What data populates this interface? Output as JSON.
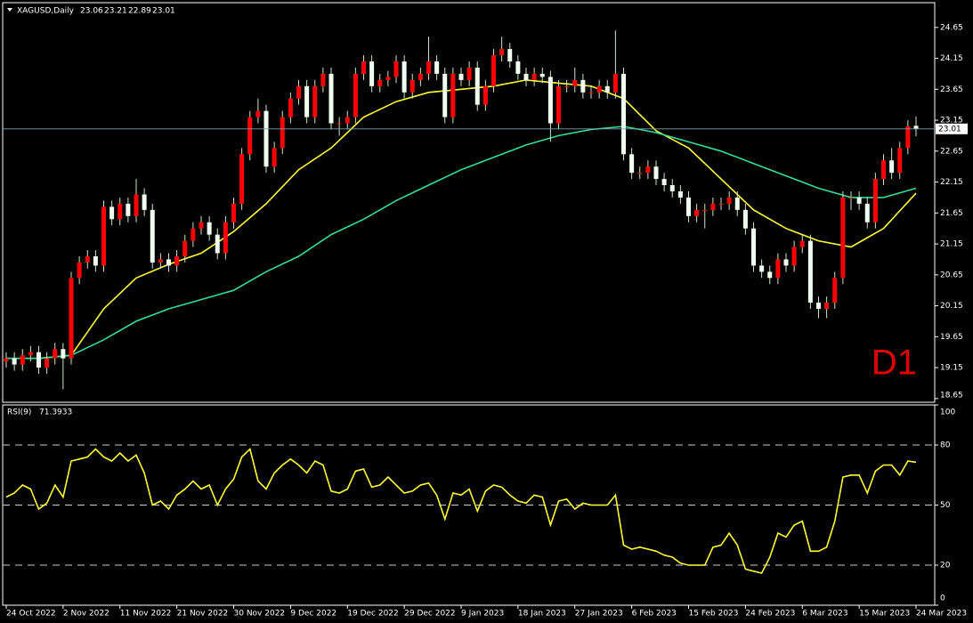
{
  "chart_data": [
    {
      "type": "candlestick",
      "title": "XAGUSD,Daily",
      "annotation": "D1",
      "categories": [
        "24 Oct 2022",
        null,
        null,
        null,
        null,
        null,
        null,
        "2 Nov 2022",
        null,
        null,
        null,
        null,
        null,
        null,
        "11 Nov 2022",
        null,
        null,
        null,
        null,
        null,
        null,
        "21 Nov 2022",
        null,
        null,
        null,
        null,
        null,
        null,
        "30 Nov 2022",
        null,
        null,
        null,
        null,
        null,
        null,
        "9 Dec 2022",
        null,
        null,
        null,
        null,
        null,
        null,
        "19 Dec 2022",
        null,
        null,
        null,
        null,
        null,
        null,
        "29 Dec 2022",
        null,
        null,
        null,
        null,
        null,
        null,
        "9 Jan 2023",
        null,
        null,
        null,
        null,
        null,
        null,
        "18 Jan 2023",
        null,
        null,
        null,
        null,
        null,
        null,
        "27 Jan 2023",
        null,
        null,
        null,
        null,
        null,
        null,
        "6 Feb 2023",
        null,
        null,
        null,
        null,
        null,
        null,
        "15 Feb 2023",
        null,
        null,
        null,
        null,
        null,
        null,
        "24 Feb 2023",
        null,
        null,
        null,
        null,
        null,
        null,
        "6 Mar 2023",
        null,
        null,
        null,
        null,
        null,
        null,
        "15 Mar 2023",
        null,
        null,
        null,
        null,
        null,
        null,
        "24 Mar 2023"
      ],
      "open": [
        19.25,
        19.3,
        19.2,
        19.35,
        19.4,
        19.15,
        19.3,
        19.45,
        19.3,
        20.6,
        20.85,
        20.95,
        20.8,
        21.75,
        21.55,
        21.8,
        21.6,
        21.95,
        21.7,
        20.85,
        20.9,
        20.8,
        20.95,
        21.2,
        21.4,
        21.5,
        21.3,
        21.0,
        21.5,
        21.8,
        22.6,
        23.2,
        23.3,
        22.4,
        22.7,
        23.2,
        23.5,
        23.7,
        23.2,
        23.7,
        23.9,
        23.1,
        23.1,
        23.2,
        23.9,
        24.1,
        23.7,
        23.8,
        23.85,
        24.1,
        23.6,
        23.8,
        23.9,
        24.1,
        23.9,
        23.2,
        23.9,
        23.8,
        24.0,
        23.4,
        23.7,
        24.2,
        24.3,
        24.1,
        23.9,
        23.8,
        23.9,
        23.85,
        23.1,
        23.7,
        23.7,
        23.8,
        23.6,
        23.6,
        23.7,
        23.6,
        23.9,
        22.6,
        22.3,
        22.3,
        22.4,
        22.2,
        22.1,
        22.0,
        21.9,
        21.6,
        21.7,
        21.7,
        21.8,
        21.8,
        21.9,
        21.7,
        21.4,
        20.8,
        20.7,
        20.6,
        20.9,
        20.8,
        21.1,
        21.2,
        20.2,
        20.1,
        20.2,
        20.6,
        21.9,
        21.9,
        21.8,
        21.5,
        22.2,
        22.5,
        22.3,
        22.7,
        23.06
      ],
      "high": [
        19.4,
        19.4,
        19.45,
        19.5,
        19.5,
        19.4,
        19.55,
        19.55,
        20.7,
        20.95,
        21.05,
        21.05,
        21.85,
        21.85,
        21.9,
        21.9,
        22.2,
        22.05,
        21.8,
        21.0,
        21.0,
        21.05,
        21.3,
        21.5,
        21.6,
        21.6,
        21.4,
        21.6,
        21.9,
        22.7,
        23.3,
        23.5,
        23.4,
        22.8,
        23.3,
        23.6,
        23.8,
        23.8,
        23.8,
        24.0,
        24.0,
        23.2,
        23.3,
        24.0,
        24.2,
        24.2,
        23.9,
        23.95,
        24.2,
        24.2,
        23.9,
        24.0,
        24.5,
        24.2,
        24.0,
        24.0,
        24.0,
        24.1,
        24.1,
        23.8,
        24.3,
        24.5,
        24.4,
        24.2,
        24.0,
        24.0,
        24.0,
        23.95,
        23.8,
        23.8,
        24.0,
        23.9,
        23.7,
        23.8,
        23.8,
        24.6,
        24.0,
        22.7,
        22.4,
        22.5,
        22.5,
        22.3,
        22.2,
        22.1,
        22.0,
        21.8,
        21.8,
        21.9,
        21.9,
        22.0,
        22.0,
        21.8,
        21.5,
        20.9,
        20.8,
        21.0,
        21.0,
        21.2,
        21.3,
        21.3,
        20.3,
        20.3,
        20.7,
        22.0,
        22.0,
        22.0,
        21.9,
        22.3,
        22.6,
        22.7,
        22.8,
        23.15,
        23.21
      ],
      "low": [
        19.15,
        19.1,
        19.1,
        19.25,
        19.05,
        19.05,
        19.2,
        18.8,
        19.2,
        20.5,
        20.75,
        20.7,
        20.7,
        21.45,
        21.45,
        21.5,
        21.5,
        21.6,
        20.75,
        20.75,
        20.7,
        20.7,
        20.85,
        21.1,
        21.3,
        21.2,
        20.9,
        20.9,
        21.4,
        21.7,
        22.5,
        23.1,
        22.3,
        22.3,
        22.6,
        23.1,
        23.4,
        23.1,
        23.1,
        23.6,
        23.0,
        22.9,
        23.0,
        23.1,
        23.8,
        23.6,
        23.6,
        23.7,
        23.75,
        23.5,
        23.5,
        23.7,
        23.8,
        23.8,
        23.1,
        23.1,
        23.7,
        23.7,
        23.3,
        23.3,
        23.6,
        24.1,
        24.0,
        23.8,
        23.7,
        23.7,
        23.75,
        22.8,
        23.0,
        23.6,
        23.6,
        23.5,
        23.5,
        23.5,
        23.5,
        23.5,
        22.5,
        22.2,
        22.2,
        22.2,
        22.1,
        22.0,
        21.9,
        21.8,
        21.5,
        21.5,
        21.4,
        21.6,
        21.7,
        21.7,
        21.6,
        21.3,
        20.7,
        20.6,
        20.5,
        20.5,
        20.7,
        20.7,
        21.0,
        20.1,
        19.95,
        19.95,
        20.1,
        20.5,
        21.7,
        21.7,
        21.4,
        21.4,
        22.1,
        22.2,
        22.2,
        22.6,
        22.89
      ],
      "close": [
        19.3,
        19.2,
        19.35,
        19.4,
        19.15,
        19.3,
        19.45,
        19.3,
        20.6,
        20.85,
        20.95,
        20.8,
        21.75,
        21.55,
        21.8,
        21.6,
        21.95,
        21.7,
        20.85,
        20.9,
        20.8,
        20.95,
        21.2,
        21.4,
        21.5,
        21.3,
        21.0,
        21.5,
        21.8,
        22.6,
        23.2,
        23.3,
        22.4,
        22.7,
        23.2,
        23.5,
        23.7,
        23.2,
        23.7,
        23.9,
        23.1,
        23.1,
        23.2,
        23.9,
        24.1,
        23.7,
        23.8,
        23.85,
        24.1,
        23.6,
        23.8,
        23.9,
        24.1,
        23.9,
        23.2,
        23.9,
        23.8,
        24.0,
        23.4,
        23.7,
        24.2,
        24.3,
        24.1,
        23.9,
        23.8,
        23.9,
        23.85,
        23.1,
        23.7,
        23.7,
        23.8,
        23.6,
        23.6,
        23.7,
        23.6,
        23.9,
        22.6,
        22.3,
        22.3,
        22.4,
        22.2,
        22.1,
        22.0,
        21.9,
        21.6,
        21.7,
        21.7,
        21.8,
        21.8,
        21.9,
        21.7,
        21.4,
        20.8,
        20.7,
        20.6,
        20.9,
        20.8,
        21.1,
        21.2,
        20.2,
        20.1,
        20.2,
        20.6,
        21.9,
        21.9,
        21.8,
        21.5,
        22.2,
        22.5,
        22.3,
        22.7,
        23.05,
        23.01
      ],
      "up_color": "#ff0000",
      "down_color": "#f0fff0",
      "wick_color": "#c8e6c8",
      "series": [
        {
          "color": "#ffff33",
          "x": [
            0,
            4,
            8,
            12,
            16,
            20,
            24,
            28,
            32,
            36,
            40,
            44,
            48,
            52,
            56,
            60,
            64,
            68,
            72,
            76,
            80,
            84,
            88,
            92,
            96,
            100,
            104,
            108,
            112
          ],
          "values": [
            19.3,
            19.3,
            19.35,
            20.1,
            20.6,
            20.82,
            21.0,
            21.35,
            21.8,
            22.35,
            22.7,
            23.2,
            23.45,
            23.6,
            23.65,
            23.7,
            23.8,
            23.75,
            23.7,
            23.5,
            22.98,
            22.7,
            22.2,
            21.7,
            21.4,
            21.2,
            21.1,
            21.4,
            21.97
          ]
        },
        {
          "color": "#33dd99",
          "x": [
            0,
            4,
            8,
            12,
            16,
            20,
            24,
            28,
            32,
            36,
            40,
            44,
            48,
            52,
            56,
            60,
            64,
            68,
            72,
            76,
            80,
            84,
            88,
            92,
            96,
            100,
            104,
            108,
            112
          ],
          "values": [
            19.3,
            19.3,
            19.35,
            19.6,
            19.9,
            20.1,
            20.25,
            20.4,
            20.7,
            20.95,
            21.3,
            21.55,
            21.85,
            22.1,
            22.35,
            22.55,
            22.75,
            22.9,
            23.0,
            23.05,
            22.95,
            22.8,
            22.65,
            22.45,
            22.25,
            22.05,
            21.9,
            21.9,
            22.05
          ]
        }
      ],
      "ylim": [
        18.59,
        25.05
      ],
      "yticks": [
        18.65,
        19.15,
        19.65,
        20.15,
        20.65,
        21.15,
        21.65,
        22.15,
        22.65,
        23.15,
        23.65,
        24.15,
        24.65
      ]
    },
    {
      "type": "line",
      "title": "RSI(9)",
      "color": "#ffff33",
      "values": [
        54,
        56,
        60,
        58,
        48,
        51,
        60,
        54,
        72,
        73,
        74,
        78,
        74,
        72,
        76,
        72,
        75,
        66,
        50,
        52,
        48,
        55,
        58,
        62,
        58,
        60,
        50,
        58,
        63,
        74,
        78,
        62,
        58,
        66,
        70,
        73,
        70,
        66,
        72,
        70,
        57,
        56,
        58,
        67,
        68,
        59,
        60,
        64,
        60,
        56,
        57,
        60,
        61,
        55,
        43,
        56,
        55,
        58,
        47,
        57,
        60,
        59,
        55,
        52,
        51,
        55,
        54,
        40,
        52,
        53,
        48,
        51,
        50,
        50,
        50,
        55,
        30,
        28,
        29,
        28,
        27,
        25,
        24,
        21,
        20,
        20,
        20,
        29,
        30,
        36,
        30,
        18,
        17,
        16,
        24,
        36,
        34,
        40,
        42,
        27,
        27,
        29,
        42,
        64,
        65,
        65,
        56,
        67,
        70,
        70,
        65,
        72,
        71.3933
      ],
      "ylim": [
        0,
        100
      ],
      "yticks": [
        0,
        20,
        50,
        80,
        100
      ]
    }
  ]
}
